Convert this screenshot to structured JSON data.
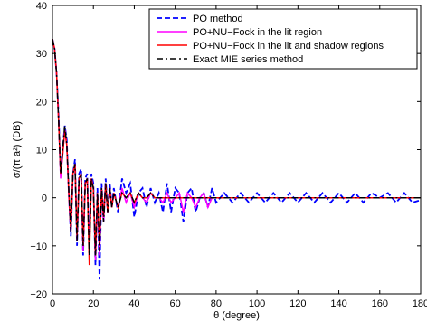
{
  "chart_data": {
    "type": "line",
    "xlabel": "θ (degree)",
    "ylabel": "σ/(π a²) (DB)",
    "xlim": [
      0,
      180
    ],
    "ylim": [
      -20,
      40
    ],
    "xticks": [
      "0",
      "20",
      "40",
      "60",
      "80",
      "100",
      "120",
      "140",
      "160",
      "180"
    ],
    "yticks": [
      "−20",
      "−10",
      "0",
      "10",
      "20",
      "30",
      "40"
    ],
    "grid": false,
    "legend_position": "top-right",
    "series": [
      {
        "name": "PO method",
        "color": "#0000ff",
        "style": "dashed",
        "x": [
          0,
          1,
          2,
          3,
          4,
          5,
          6,
          7,
          8,
          9,
          10,
          11,
          12,
          13,
          14,
          15,
          16,
          17,
          18,
          19,
          20,
          21,
          22,
          23,
          24,
          25,
          26,
          27,
          28,
          29,
          30,
          32,
          34,
          36,
          38,
          40,
          42,
          44,
          46,
          48,
          50,
          52,
          54,
          56,
          58,
          60,
          62,
          64,
          66,
          68,
          70,
          72,
          74,
          76,
          78,
          80,
          84,
          88,
          92,
          96,
          100,
          104,
          108,
          112,
          116,
          120,
          124,
          128,
          132,
          136,
          140,
          144,
          148,
          152,
          156,
          160,
          164,
          168,
          172,
          176,
          180
        ],
        "y": [
          33,
          31,
          26,
          17,
          5,
          10,
          15,
          12,
          1,
          -8,
          5,
          8,
          -10,
          5,
          6,
          -12,
          4,
          5,
          -11,
          5,
          3,
          -14,
          2,
          -17,
          3,
          -5,
          4,
          -3,
          3,
          -2,
          2,
          -3,
          4,
          1,
          3,
          -4,
          1,
          2,
          -2,
          2,
          -1,
          1,
          -3,
          3,
          -3,
          2,
          1,
          -5,
          1,
          2,
          -3,
          0,
          1,
          -2,
          2,
          -1,
          1,
          -1,
          1,
          -1,
          1,
          -1,
          1,
          -1,
          1,
          -1,
          1,
          -1,
          1,
          -1,
          1,
          -1,
          1,
          -1,
          1,
          0,
          1,
          -1,
          1,
          -1,
          -0.5
        ]
      },
      {
        "name": "PO+NU−Fock in the lit  region",
        "color": "#ff00ff",
        "style": "solid",
        "x": [
          0,
          1,
          2,
          3,
          4,
          5,
          6,
          7,
          8,
          9,
          10,
          11,
          12,
          13,
          14,
          15,
          16,
          17,
          18,
          19,
          20,
          21,
          22,
          23,
          24,
          25,
          26,
          27,
          28,
          29,
          30,
          32,
          34,
          36,
          38,
          40,
          42,
          44,
          46,
          48,
          50,
          52,
          54,
          56,
          58,
          60,
          62,
          64,
          66,
          68,
          70,
          72,
          74,
          76,
          78,
          80,
          84,
          88,
          92,
          96,
          100,
          104,
          108,
          112,
          116,
          120,
          124,
          128,
          132,
          136,
          140,
          144,
          148,
          152,
          156,
          160,
          164,
          168,
          172,
          176,
          180
        ],
        "y": [
          33,
          31,
          26,
          16,
          4,
          9,
          14,
          11,
          0,
          -7,
          5,
          7,
          -9,
          4,
          5,
          -11,
          3,
          4,
          -10,
          4,
          2,
          -13,
          1,
          -12,
          2,
          -5,
          3,
          -3,
          2,
          -2,
          1,
          -2,
          2,
          -1,
          1,
          -2,
          1,
          0,
          -1,
          1,
          0,
          0,
          -1,
          1,
          -1,
          0,
          1,
          -3,
          1,
          0,
          -2,
          0,
          1,
          -2,
          0,
          0,
          0,
          0,
          0,
          0,
          0,
          0,
          0,
          0,
          0,
          0,
          0,
          0,
          0,
          0,
          0,
          0,
          0,
          0,
          0,
          0,
          0,
          0,
          0,
          0,
          0
        ]
      },
      {
        "name": "PO+NU−Fock in the lit and shadow regions",
        "color": "#ff0000",
        "style": "solid",
        "x": [
          0,
          1,
          2,
          3,
          4,
          5,
          6,
          7,
          8,
          9,
          10,
          11,
          12,
          13,
          14,
          15,
          16,
          17,
          18,
          19,
          20,
          21,
          22,
          23,
          24,
          25,
          26,
          27,
          28,
          29,
          30,
          32,
          34,
          36,
          38,
          40,
          42,
          44,
          46,
          48,
          50,
          52,
          54,
          56,
          58,
          60,
          62,
          64,
          66,
          68,
          70,
          72,
          74,
          76,
          78,
          80,
          84,
          88,
          92,
          96,
          100,
          104,
          108,
          112,
          116,
          120,
          124,
          128,
          132,
          136,
          140,
          144,
          148,
          152,
          156,
          160,
          164,
          168,
          172,
          176,
          180
        ],
        "y": [
          33,
          31,
          26,
          16,
          5,
          9,
          14,
          11,
          1,
          -7,
          5,
          7,
          -8,
          4,
          5,
          -10,
          3,
          4,
          -14,
          4,
          2,
          -12,
          1,
          -10,
          2,
          -4,
          3,
          -3,
          2,
          -2,
          1,
          -2,
          1,
          0,
          1,
          -1,
          1,
          0,
          0,
          1,
          0,
          0,
          0,
          0,
          0,
          0,
          0,
          0,
          0,
          0,
          0,
          0,
          0,
          0,
          0,
          0,
          0,
          0,
          0,
          0,
          0,
          0,
          0,
          0,
          0,
          0,
          0,
          0,
          0,
          0,
          0,
          0,
          0,
          0,
          0,
          0,
          0,
          0,
          0,
          0,
          0
        ]
      },
      {
        "name": "Exact MIE series method",
        "color": "#000000",
        "style": "dashdot",
        "x": [
          0,
          1,
          2,
          3,
          4,
          5,
          6,
          7,
          8,
          9,
          10,
          11,
          12,
          13,
          14,
          15,
          16,
          17,
          18,
          19,
          20,
          21,
          22,
          23,
          24,
          25,
          26,
          27,
          28,
          29,
          30,
          32,
          34,
          36,
          38,
          40,
          42,
          44,
          46,
          48,
          50,
          52,
          54,
          56,
          58,
          60,
          62,
          64,
          66,
          68,
          70,
          72,
          74,
          76,
          78,
          80,
          84,
          88,
          92,
          96,
          100,
          104,
          108,
          112,
          116,
          120,
          124,
          128,
          132,
          136,
          140,
          144,
          148,
          152,
          156,
          160,
          164,
          168,
          172,
          176,
          180
        ],
        "y": [
          33,
          31,
          26,
          16,
          5,
          10,
          15,
          11,
          1,
          -7,
          5,
          7,
          -9,
          4,
          5,
          -10,
          3,
          4,
          -12,
          4,
          2,
          -12,
          1,
          -11,
          2,
          -5,
          3,
          -3,
          2,
          -2,
          1,
          -2,
          1,
          0,
          1,
          -1,
          1,
          0,
          0,
          1,
          0,
          0,
          0,
          0,
          0,
          0,
          0,
          0,
          0,
          0,
          0,
          0,
          0,
          0,
          0,
          0,
          0,
          0,
          0,
          0,
          0,
          0,
          0,
          0,
          0,
          0,
          0,
          0,
          0,
          0,
          0,
          0,
          0,
          0,
          0,
          0,
          0,
          0,
          0,
          0,
          0
        ]
      }
    ]
  }
}
